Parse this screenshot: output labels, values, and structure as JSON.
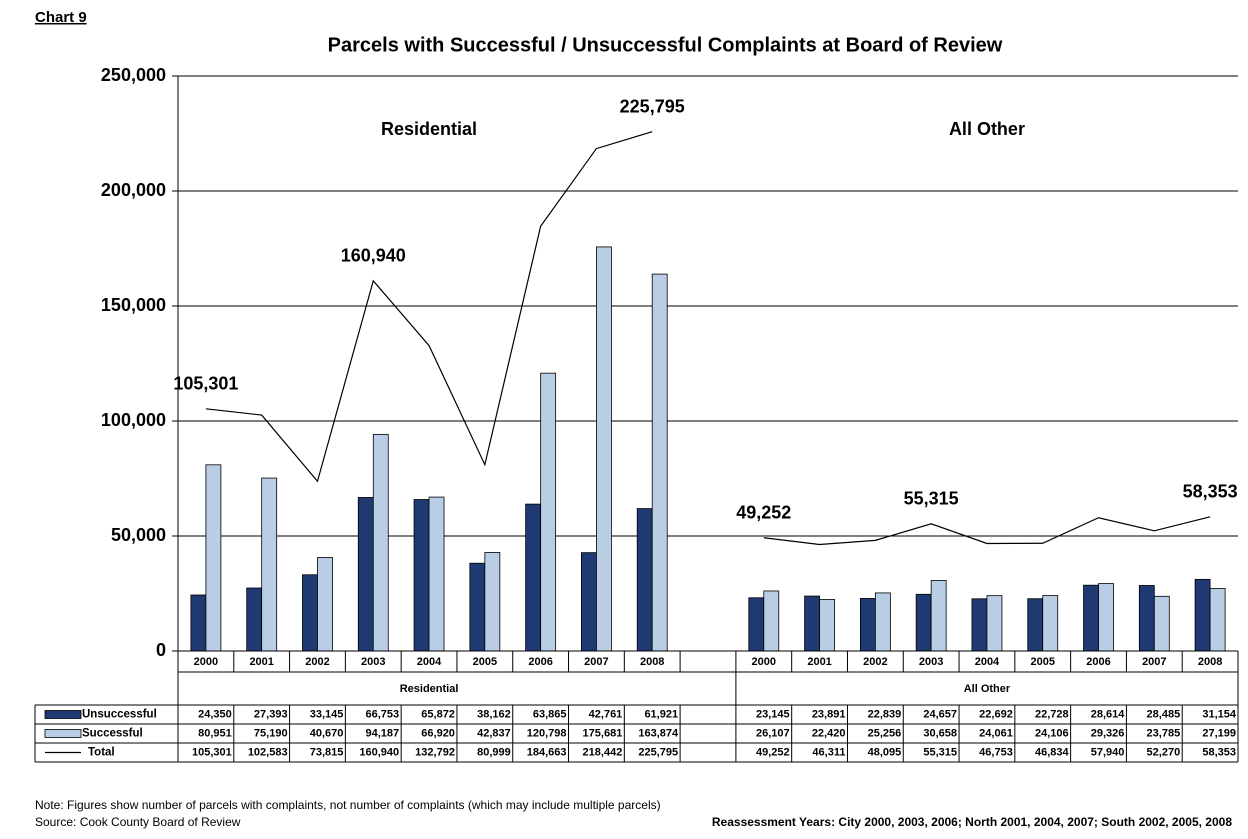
{
  "chart_data": {
    "type": "bar",
    "chart_label": "Chart 9",
    "title": "Parcels with Successful / Unsuccessful Complaints at Board of Review",
    "categories": [
      "2000",
      "2001",
      "2002",
      "2003",
      "2004",
      "2005",
      "2006",
      "2007",
      "2008",
      null,
      "2000",
      "2001",
      "2002",
      "2003",
      "2004",
      "2005",
      "2006",
      "2007",
      "2008"
    ],
    "groups": [
      "Residential",
      "All Other"
    ],
    "series": [
      {
        "name": "Unsuccessful",
        "type": "bar",
        "color": "#1F3A73",
        "values": [
          24350,
          27393,
          33145,
          66753,
          65872,
          38162,
          63865,
          42761,
          61921,
          null,
          23145,
          23891,
          22839,
          24657,
          22692,
          22728,
          28614,
          28485,
          31154
        ],
        "value_labels": [
          "24,350",
          "27,393",
          "33,145",
          "66,753",
          "65,872",
          "38,162",
          "63,865",
          "42,761",
          "61,921",
          null,
          "23,145",
          "23,891",
          "22,839",
          "24,657",
          "22,692",
          "22,728",
          "28,614",
          "28,485",
          "31,154"
        ]
      },
      {
        "name": "Successful",
        "type": "bar",
        "color": "#B9CDE5",
        "values": [
          80951,
          75190,
          40670,
          94187,
          66920,
          42837,
          120798,
          175681,
          163874,
          null,
          26107,
          22420,
          25256,
          30658,
          24061,
          24106,
          29326,
          23785,
          27199
        ],
        "value_labels": [
          "80,951",
          "75,190",
          "40,670",
          "94,187",
          "66,920",
          "42,837",
          "120,798",
          "175,681",
          "163,874",
          null,
          "26,107",
          "22,420",
          "25,256",
          "30,658",
          "24,061",
          "24,106",
          "29,326",
          "23,785",
          "27,199"
        ]
      },
      {
        "name": "Total",
        "type": "line",
        "color": "#000000",
        "values": [
          105301,
          102583,
          73815,
          160940,
          132792,
          80999,
          184663,
          218442,
          225795,
          null,
          49252,
          46311,
          48095,
          55315,
          46753,
          46834,
          57940,
          52270,
          58353
        ],
        "value_labels": [
          "105,301",
          "102,583",
          "73,815",
          "160,940",
          "132,792",
          "80,999",
          "184,663",
          "218,442",
          "225,795",
          null,
          "49,252",
          "46,311",
          "48,095",
          "55,315",
          "46,753",
          "46,834",
          "57,940",
          "52,270",
          "58,353"
        ],
        "labeled_points": [
          0,
          3,
          8,
          10,
          13,
          18
        ]
      }
    ],
    "ylim": [
      0,
      250000
    ],
    "yticks": [
      0,
      {
        "value": 50000,
        "label": "50,000"
      },
      {
        "value": 100000,
        "label": "100,000"
      },
      {
        "value": 150000,
        "label": "150,000"
      },
      {
        "value": 200000,
        "label": "200,000"
      },
      {
        "value": 250000,
        "label": "250,000"
      }
    ],
    "grid": true,
    "note": "Note: Figures show number of parcels with complaints, not number of complaints (which may include  multiple parcels)",
    "source": "Source: Cook County Board of Review",
    "footer_right": "Reassessment Years: City 2000, 2003, 2006; North 2001, 2004, 2007; South 2002, 2005, 2008"
  }
}
